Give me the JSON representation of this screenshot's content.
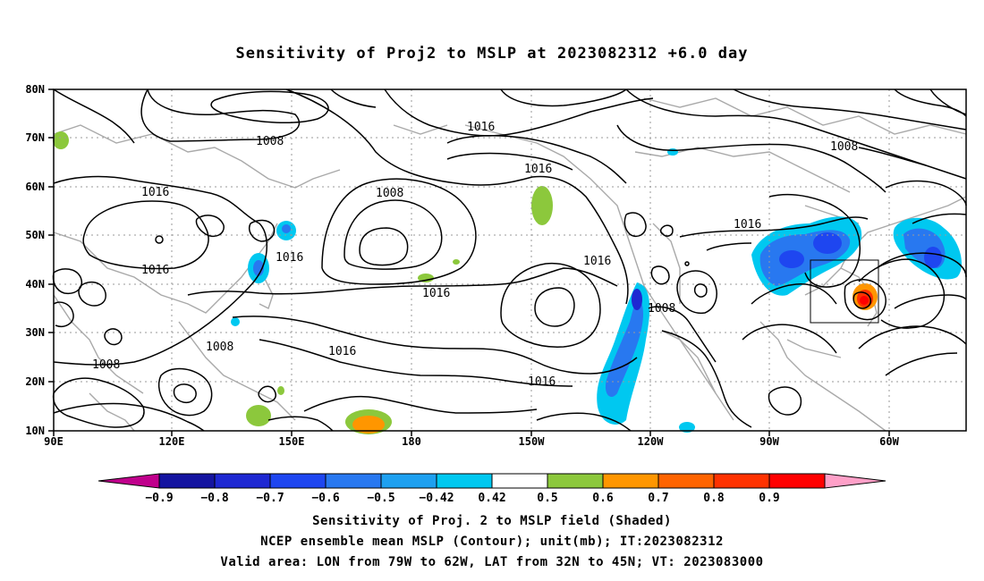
{
  "title": "Sensitivity of Proj2 to MSLP at 2023082312 +6.0 day",
  "map": {
    "lat_labels": [
      "80N",
      "70N",
      "60N",
      "50N",
      "40N",
      "30N",
      "20N",
      "10N"
    ],
    "lon_labels": [
      "90E",
      "120E",
      "150E",
      "180",
      "150W",
      "120W",
      "90W",
      "60W"
    ],
    "contour_labels": [
      "1008",
      "1016",
      "1016",
      "1008",
      "1016",
      "1008",
      "1016",
      "1016",
      "1008",
      "1016",
      "1016",
      "1016",
      "1016",
      "1008"
    ],
    "valid_box": {
      "lon_from": "79W",
      "lon_to": "62W",
      "lat_from": "32N",
      "lat_to": "45N"
    }
  },
  "colorbar": {
    "labels": [
      "-0.9",
      "-0.8",
      "-0.7",
      "-0.6",
      "-0.5",
      "-0.42",
      "0.42",
      "0.5",
      "0.6",
      "0.7",
      "0.8",
      "0.9"
    ],
    "colors": [
      "#c0008c",
      "#1414a0",
      "#1e28d2",
      "#1e46f0",
      "#2878f0",
      "#1ea0f0",
      "#00c8f0",
      "#ffffff",
      "#8cc83c",
      "#ff9600",
      "#ff6400",
      "#ff3200",
      "#ff0000",
      "#ffa0c8"
    ]
  },
  "caption": {
    "line1": "Sensitivity of Proj. 2 to MSLP field (Shaded)",
    "line2": "NCEP ensemble mean MSLP (Contour); unit(mb); IT:2023082312",
    "line3": "Valid area: LON from 79W to 62W, LAT from 32N to 45N; VT: 2023083000"
  }
}
